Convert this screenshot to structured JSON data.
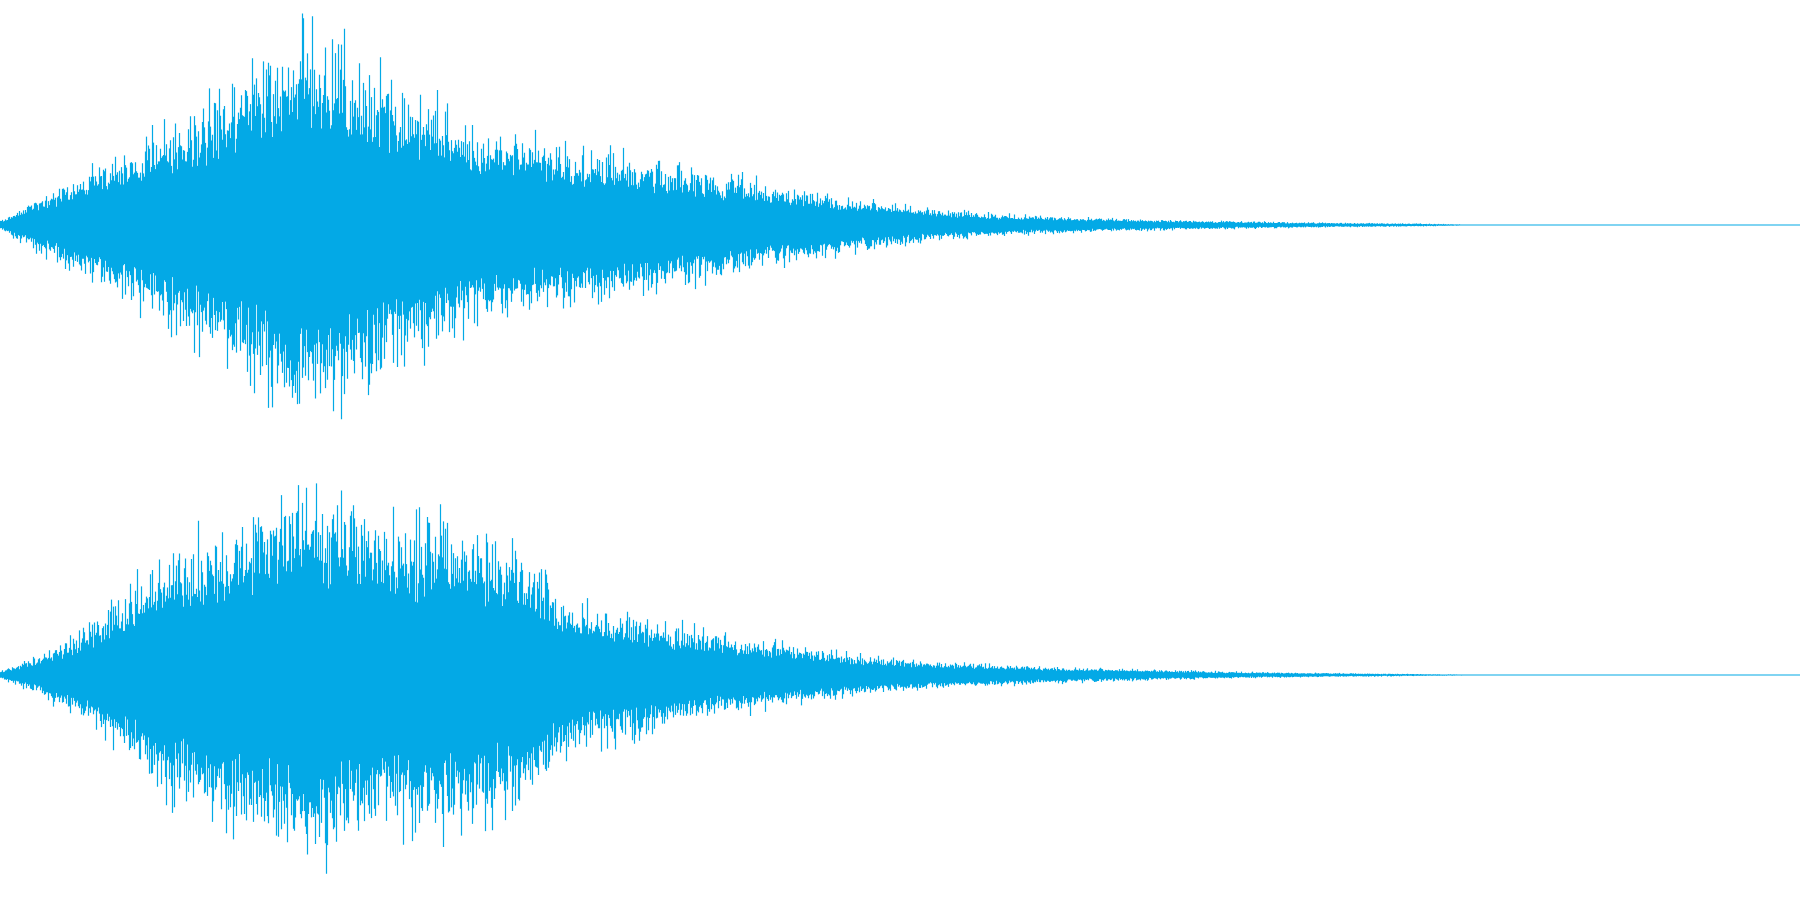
{
  "waveform": {
    "color": "#03a9e6",
    "background": "#ffffff",
    "channels": [
      {
        "name": "",
        "envelope": [
          [
            0.0,
            0.02
          ],
          [
            0.02,
            0.12
          ],
          [
            0.06,
            0.3
          ],
          [
            0.1,
            0.48
          ],
          [
            0.14,
            0.66
          ],
          [
            0.17,
            0.82
          ],
          [
            0.19,
            0.98
          ],
          [
            0.22,
            0.9
          ],
          [
            0.26,
            0.7
          ],
          [
            0.3,
            0.52
          ],
          [
            0.35,
            0.42
          ],
          [
            0.4,
            0.36
          ],
          [
            0.45,
            0.28
          ],
          [
            0.5,
            0.2
          ],
          [
            0.55,
            0.13
          ],
          [
            0.6,
            0.08
          ],
          [
            0.65,
            0.05
          ],
          [
            0.7,
            0.035
          ],
          [
            0.75,
            0.025
          ],
          [
            0.8,
            0.018
          ],
          [
            0.85,
            0.012
          ],
          [
            0.9,
            0.008
          ],
          [
            0.93,
            0.004
          ],
          [
            0.94,
            0.001
          ],
          [
            1.0,
            0.0
          ]
        ]
      },
      {
        "name": "",
        "envelope": [
          [
            0.0,
            0.02
          ],
          [
            0.02,
            0.08
          ],
          [
            0.05,
            0.22
          ],
          [
            0.08,
            0.4
          ],
          [
            0.1,
            0.62
          ],
          [
            0.13,
            0.72
          ],
          [
            0.17,
            0.86
          ],
          [
            0.19,
            0.98
          ],
          [
            0.22,
            0.88
          ],
          [
            0.25,
            0.76
          ],
          [
            0.28,
            0.8
          ],
          [
            0.31,
            0.72
          ],
          [
            0.34,
            0.6
          ],
          [
            0.36,
            0.4
          ],
          [
            0.4,
            0.32
          ],
          [
            0.45,
            0.22
          ],
          [
            0.5,
            0.16
          ],
          [
            0.55,
            0.1
          ],
          [
            0.6,
            0.07
          ],
          [
            0.65,
            0.05
          ],
          [
            0.7,
            0.035
          ],
          [
            0.75,
            0.025
          ],
          [
            0.8,
            0.015
          ],
          [
            0.85,
            0.01
          ],
          [
            0.9,
            0.006
          ],
          [
            0.93,
            0.003
          ],
          [
            0.94,
            0.001
          ],
          [
            1.0,
            0.0
          ]
        ]
      }
    ]
  }
}
